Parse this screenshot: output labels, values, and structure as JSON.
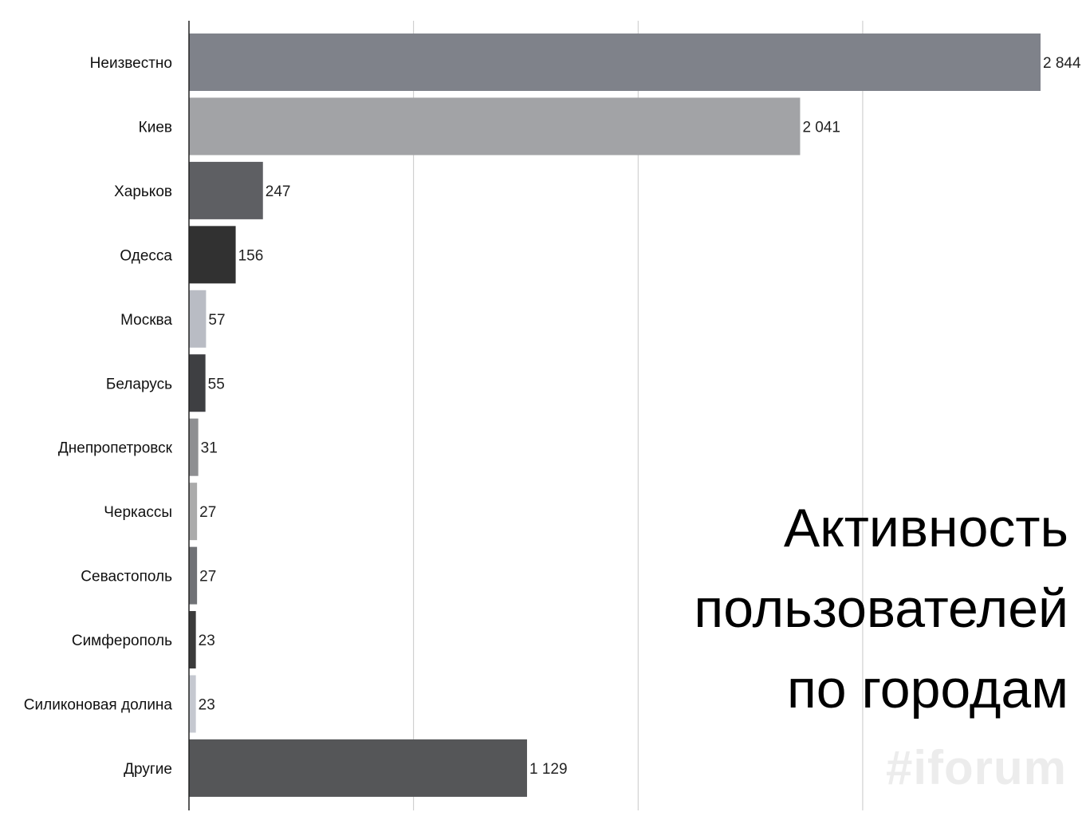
{
  "chart_data": {
    "type": "bar",
    "orientation": "horizontal",
    "categories": [
      "Неизвестно",
      "Киев",
      "Харьков",
      "Одесса",
      "Москва",
      "Беларусь",
      "Днепропетровск",
      "Черкассы",
      "Севастополь",
      "Симферополь",
      "Силиконовая долина",
      "Другие"
    ],
    "values": [
      2844,
      2041,
      247,
      156,
      57,
      55,
      31,
      27,
      27,
      23,
      23,
      1129
    ],
    "value_labels": [
      "2 844",
      "2 041",
      "247",
      "156",
      "57",
      "55",
      "31",
      "27",
      "27",
      "23",
      "23",
      "1 129"
    ],
    "bar_colors": [
      "#7f828a",
      "#a2a3a6",
      "#5e5f63",
      "#313131",
      "#b9bcc4",
      "#3e3f42",
      "#8e8f92",
      "#ababab",
      "#707276",
      "#3b3b3b",
      "#c5c8d0",
      "#555658"
    ],
    "xlim": [
      0,
      3000
    ],
    "grid_values": [
      750,
      1500,
      2250
    ],
    "grid": true,
    "title_lines": [
      "Активность",
      "пользователей",
      "по городам"
    ]
  },
  "watermark": "#iforum"
}
